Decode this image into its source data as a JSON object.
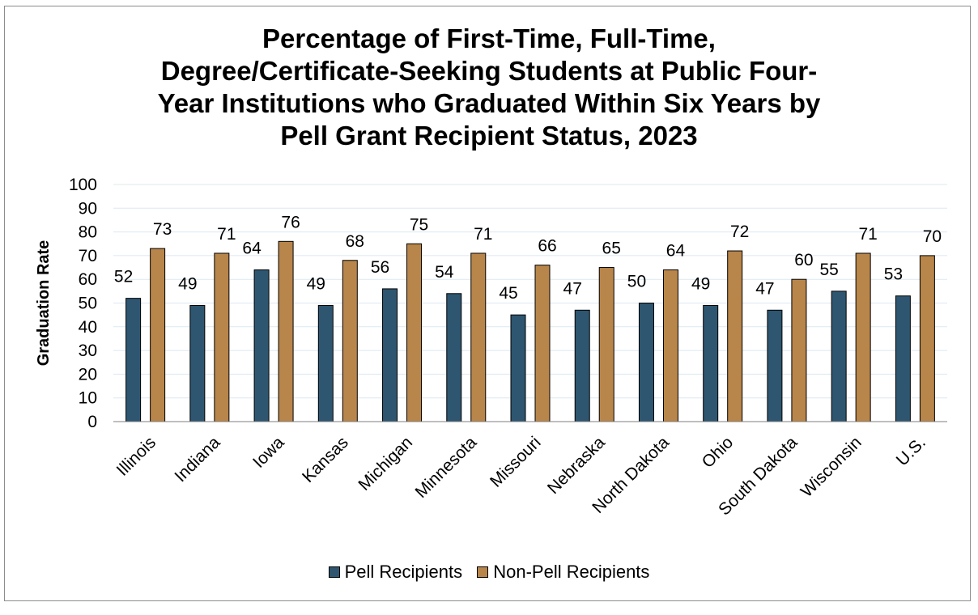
{
  "chart_data": {
    "type": "bar",
    "title_lines": [
      "Percentage of First-Time, Full-Time,",
      "Degree/Certificate-Seeking Students at Public Four-",
      "Year Institutions who Graduated Within Six Years by",
      "Pell Grant Recipient Status, 2023"
    ],
    "ylabel": "Graduation Rate",
    "xlabel": "",
    "ylim": [
      0,
      100
    ],
    "yticks": [
      0,
      10,
      20,
      30,
      40,
      50,
      60,
      70,
      80,
      90,
      100
    ],
    "grid": true,
    "legend_position": "bottom",
    "categories": [
      "Illinois",
      "Indiana",
      "Iowa",
      "Kansas",
      "Michigan",
      "Minnesota",
      "Missouri",
      "Nebraska",
      "North Dakota",
      "Ohio",
      "South Dakota",
      "Wisconsin",
      "U.S."
    ],
    "series": [
      {
        "name": "Pell Recipients",
        "color": "#2e5670",
        "values": [
          52,
          49,
          64,
          49,
          56,
          54,
          45,
          47,
          50,
          49,
          47,
          55,
          53
        ]
      },
      {
        "name": "Non-Pell Recipients",
        "color": "#b8854a",
        "values": [
          73,
          71,
          76,
          68,
          75,
          71,
          66,
          65,
          64,
          72,
          60,
          71,
          70
        ]
      }
    ]
  }
}
